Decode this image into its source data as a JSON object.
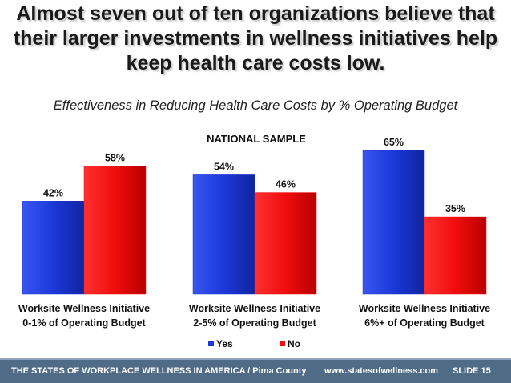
{
  "slide": {
    "title_lines": [
      "Almost seven out of ten organizations believe that",
      "their larger investments in wellness initiatives help",
      "keep health care costs low."
    ],
    "subtitle": "Effectiveness in Reducing Health Care Costs by % Operating Budget"
  },
  "chart_data": {
    "type": "bar",
    "title": "NATIONAL SAMPLE",
    "categories": [
      [
        "Worksite Wellness Initiative",
        "0-1% of Operating Budget"
      ],
      [
        "Worksite Wellness Initiative",
        "2-5% of Operating Budget"
      ],
      [
        "Worksite Wellness Initiative",
        "6%+ of Operating Budget"
      ]
    ],
    "series": [
      {
        "name": "Yes",
        "values": [
          42,
          54,
          65
        ],
        "color": "#1c38d8"
      },
      {
        "name": "No",
        "values": [
          58,
          46,
          35
        ],
        "color": "#f00d0d"
      }
    ],
    "value_suffix": "%",
    "ylim": [
      0,
      70
    ],
    "legend_position": "bottom",
    "grid": false
  },
  "footer": {
    "left": "THE STATES OF WORKPLACE WELLNESS IN AMERICA / Pima County",
    "url": "www.statesofwellness.com",
    "slide": "SLIDE 15"
  }
}
